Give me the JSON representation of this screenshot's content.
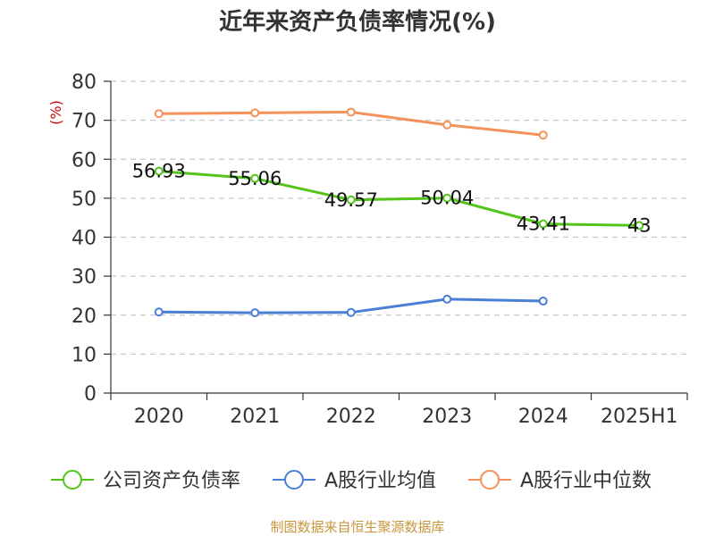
{
  "chart_data": {
    "type": "line",
    "title": "近年来资产负债率情况(%)",
    "ylabel": "(%)",
    "categories": [
      "2020",
      "2021",
      "2022",
      "2023",
      "2024",
      "2025H1"
    ],
    "ylim": [
      0,
      80
    ],
    "yticks": [
      0,
      10,
      20,
      30,
      40,
      50,
      60,
      70,
      80
    ],
    "grid": true,
    "legend_position": "bottom",
    "series": [
      {
        "name": "公司资产负债率",
        "color": "#52c41a",
        "values": [
          56.93,
          55.06,
          49.57,
          50.04,
          43.41,
          43
        ],
        "labels": [
          "56.93",
          "55.06",
          "49.57",
          "50.04",
          "43.41",
          "43"
        ]
      },
      {
        "name": "A股行业均值",
        "color": "#4a7fd6",
        "values": [
          20.8,
          20.6,
          20.7,
          24.1,
          23.6,
          null
        ],
        "labels": []
      },
      {
        "name": "A股行业中位数",
        "color": "#f5915a",
        "values": [
          71.7,
          71.9,
          72.1,
          68.8,
          66.2,
          null
        ],
        "labels": []
      }
    ],
    "source": "制图数据来自恒生聚源数据库"
  }
}
